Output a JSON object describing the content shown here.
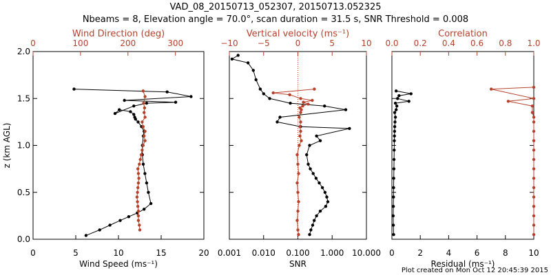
{
  "header": {
    "title": "VAD_08_20150713_052307, 20150713.052325",
    "subtitle": "Nbeams = 8, Elevation angle = 70.0°, scan duration = 31.5 s, SNR Threshold = 0.008"
  },
  "footer": {
    "credit": "Plot created on Mon Oct 12 20:45:39 2015"
  },
  "colors": {
    "primary": "#000000",
    "secondary": "#b5412a",
    "dotted": "#d43a1e"
  },
  "chart_data": [
    {
      "type": "line",
      "panel": "wind",
      "ylabel": "z (km AGL)",
      "ylim": [
        0,
        2
      ],
      "yticks": [
        "0.0",
        "0.5",
        "1.0",
        "1.5",
        "2.0"
      ],
      "bottom_axis": {
        "label": "Wind Speed (ms⁻¹)",
        "lim": [
          0,
          20
        ],
        "ticks": [
          "0",
          "5",
          "10",
          "15",
          "20"
        ],
        "tick_values": [
          0,
          5,
          10,
          15,
          20
        ],
        "color": "#000000"
      },
      "top_axis": {
        "label": "Wind Direction (deg)",
        "lim": [
          0,
          360
        ],
        "ticks": [
          "0",
          "100",
          "200",
          "300"
        ],
        "tick_values": [
          0,
          100,
          200,
          300
        ],
        "color": "#b5412a"
      },
      "series": [
        {
          "axis": "bottom",
          "color": "#000000",
          "x": [
            6.2,
            7.8,
            9.0,
            10.2,
            11.2,
            12.2,
            13.0,
            13.8,
            13.5,
            13.3,
            13.1,
            12.9,
            12.8,
            12.8,
            12.9,
            13.0,
            12.7,
            12.3,
            12.0,
            11.9,
            11.8,
            11.4,
            10.1,
            9.6,
            11.8,
            13.3,
            16.7,
            10.7,
            18.5,
            15.7,
            4.8
          ],
          "y": [
            0.04,
            0.1,
            0.15,
            0.2,
            0.24,
            0.28,
            0.32,
            0.38,
            0.5,
            0.6,
            0.7,
            0.8,
            0.9,
            1.0,
            1.1,
            1.15,
            1.2,
            1.25,
            1.28,
            1.3,
            1.33,
            1.36,
            1.38,
            1.34,
            1.42,
            1.45,
            1.46,
            1.48,
            1.52,
            1.57,
            1.6
          ]
        },
        {
          "axis": "top",
          "color": "#b5412a",
          "x": [
            225,
            224,
            222,
            222,
            222,
            221,
            220,
            219,
            220,
            221,
            222,
            223,
            222,
            221,
            224,
            226,
            228,
            230,
            232,
            236,
            234,
            236,
            232,
            230,
            236,
            234,
            235,
            233,
            236,
            232
          ],
          "y": [
            0.1,
            0.15,
            0.2,
            0.25,
            0.3,
            0.35,
            0.4,
            0.45,
            0.5,
            0.55,
            0.6,
            0.65,
            0.7,
            0.75,
            0.8,
            0.85,
            0.9,
            0.95,
            1.0,
            1.05,
            1.1,
            1.15,
            1.2,
            1.25,
            1.3,
            1.35,
            1.4,
            1.45,
            1.52,
            1.58
          ]
        }
      ]
    },
    {
      "type": "line",
      "panel": "snr",
      "ylim": [
        0,
        2
      ],
      "bottom_axis": {
        "label": "SNR",
        "scale": "log",
        "lim": [
          0.001,
          10
        ],
        "ticks": [
          "0.001",
          "0.010",
          "0.100",
          "1.000",
          "10.000"
        ],
        "tick_values": [
          0.001,
          0.01,
          0.1,
          1,
          10
        ],
        "color": "#000000"
      },
      "top_axis": {
        "label": "Vertical velocity (ms⁻¹)",
        "lim": [
          -10,
          10
        ],
        "ticks": [
          "−10",
          "−5",
          "0",
          "5",
          "10"
        ],
        "tick_values": [
          -10,
          -5,
          0,
          5,
          10
        ],
        "color": "#b5412a"
      },
      "zero_line": {
        "axis": "top",
        "value": 0,
        "style": "dotted"
      },
      "series": [
        {
          "axis": "bottom",
          "color": "#000000",
          "x": [
            0.22,
            0.24,
            0.27,
            0.3,
            0.35,
            0.45,
            0.65,
            0.75,
            0.7,
            0.62,
            0.52,
            0.42,
            0.34,
            0.28,
            0.23,
            0.2,
            0.18,
            0.22,
            0.45,
            0.35,
            3.2,
            0.12,
            0.025,
            0.03,
            2.5,
            0.6,
            0.06,
            0.015,
            0.01,
            0.008,
            0.006,
            0.005,
            0.0035,
            0.0012,
            0.0018
          ],
          "y": [
            0.05,
            0.1,
            0.15,
            0.2,
            0.25,
            0.3,
            0.35,
            0.4,
            0.45,
            0.5,
            0.55,
            0.6,
            0.65,
            0.7,
            0.75,
            0.8,
            0.9,
            1.0,
            1.05,
            1.1,
            1.18,
            1.2,
            1.25,
            1.3,
            1.38,
            1.42,
            1.45,
            1.5,
            1.55,
            1.6,
            1.7,
            1.8,
            1.88,
            1.92,
            1.96
          ]
        },
        {
          "axis": "top",
          "color": "#b5412a",
          "x": [
            0.1,
            0.0,
            -0.1,
            0.0,
            0.1,
            0.0,
            -0.1,
            0.1,
            0.0,
            -0.1,
            0.2,
            0.5,
            0.3,
            0.4,
            0.3,
            0.4,
            0.2,
            0.4,
            0.5,
            0.3,
            0.7,
            1.5,
            0.8,
            2.1,
            0.4,
            -1.2,
            -3.6,
            2.4
          ],
          "y": [
            0.05,
            0.1,
            0.2,
            0.3,
            0.4,
            0.5,
            0.6,
            0.7,
            0.8,
            0.9,
            1.0,
            1.05,
            1.1,
            1.15,
            1.2,
            1.25,
            1.3,
            1.35,
            1.38,
            1.4,
            1.42,
            1.44,
            1.46,
            1.48,
            1.5,
            1.54,
            1.56,
            1.6
          ]
        }
      ]
    },
    {
      "type": "line",
      "panel": "correlation",
      "ylim": [
        0,
        2
      ],
      "bottom_axis": {
        "label": "Residual (ms⁻¹)",
        "lim": [
          0,
          10
        ],
        "ticks": [
          "0",
          "2",
          "4",
          "6",
          "8",
          "10"
        ],
        "tick_values": [
          0,
          2,
          4,
          6,
          8,
          10
        ],
        "color": "#000000"
      },
      "top_axis": {
        "label": "Correlation",
        "lim": [
          0,
          1
        ],
        "ticks": [
          "0.0",
          "0.2",
          "0.4",
          "0.6",
          "0.8",
          "1.0"
        ],
        "tick_values": [
          0,
          0.2,
          0.4,
          0.6,
          0.8,
          1
        ],
        "color": "#b5412a"
      },
      "series": [
        {
          "axis": "bottom",
          "color": "#000000",
          "x": [
            0.12,
            0.1,
            0.09,
            0.1,
            0.11,
            0.12,
            0.13,
            0.14,
            0.15,
            0.16,
            0.17,
            0.18,
            0.19,
            0.2,
            0.22,
            0.25,
            0.2,
            0.3,
            0.35,
            0.25,
            1.2,
            0.4,
            0.5,
            1.35,
            0.3
          ],
          "y": [
            0.05,
            0.15,
            0.25,
            0.35,
            0.45,
            0.55,
            0.65,
            0.75,
            0.85,
            0.95,
            1.05,
            1.1,
            1.15,
            1.2,
            1.25,
            1.3,
            1.35,
            1.38,
            1.42,
            1.45,
            1.47,
            1.5,
            1.53,
            1.55,
            1.58
          ]
        },
        {
          "axis": "top",
          "color": "#b5412a",
          "x": [
            1.0,
            1.0,
            1.0,
            1.0,
            1.0,
            1.0,
            1.0,
            1.0,
            1.0,
            1.0,
            1.0,
            1.0,
            1.0,
            1.0,
            0.99,
            0.99,
            0.82,
            1.0,
            0.7,
            1.0
          ],
          "y": [
            0.05,
            0.15,
            0.25,
            0.35,
            0.45,
            0.55,
            0.65,
            0.75,
            0.85,
            0.95,
            1.05,
            1.15,
            1.25,
            1.3,
            1.35,
            1.42,
            1.47,
            1.5,
            1.6,
            1.62
          ]
        }
      ]
    }
  ]
}
